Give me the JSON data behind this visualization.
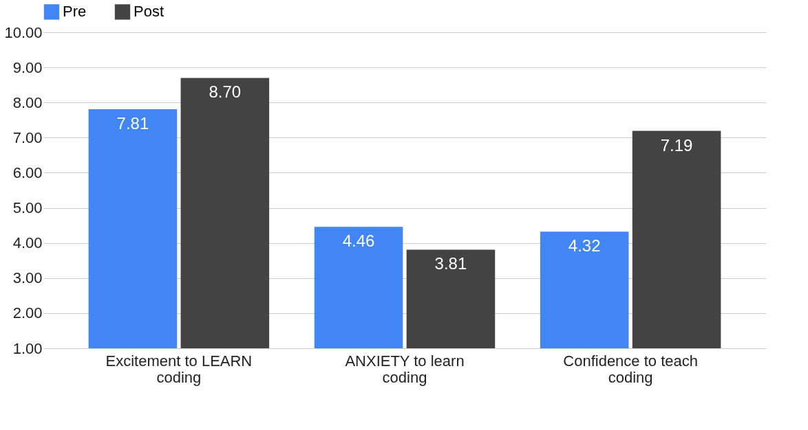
{
  "chart_data": {
    "type": "bar",
    "categories": [
      "Excitement to LEARN coding",
      "ANXIETY to learn coding",
      "Confidence to teach coding"
    ],
    "series": [
      {
        "name": "Pre",
        "color": "#4285f4",
        "values": [
          7.81,
          4.46,
          4.32
        ]
      },
      {
        "name": "Post",
        "color": "#434343",
        "values": [
          8.7,
          3.81,
          7.19
        ]
      }
    ],
    "value_labels": [
      [
        "7.81",
        "4.46",
        "4.32"
      ],
      [
        "8.70",
        "3.81",
        "7.19"
      ]
    ],
    "ylim": [
      1,
      10
    ],
    "yticks": [
      {
        "value": 1,
        "label": "1.00"
      },
      {
        "value": 2,
        "label": "2.00"
      },
      {
        "value": 3,
        "label": "3.00"
      },
      {
        "value": 4,
        "label": "4.00"
      },
      {
        "value": 5,
        "label": "5.00"
      },
      {
        "value": 6,
        "label": "6.00"
      },
      {
        "value": 7,
        "label": "7.00"
      },
      {
        "value": 8,
        "label": "8.00"
      },
      {
        "value": 9,
        "label": "9.00"
      },
      {
        "value": 10,
        "label": "10.00"
      }
    ],
    "grid": "y",
    "legend": "top"
  }
}
